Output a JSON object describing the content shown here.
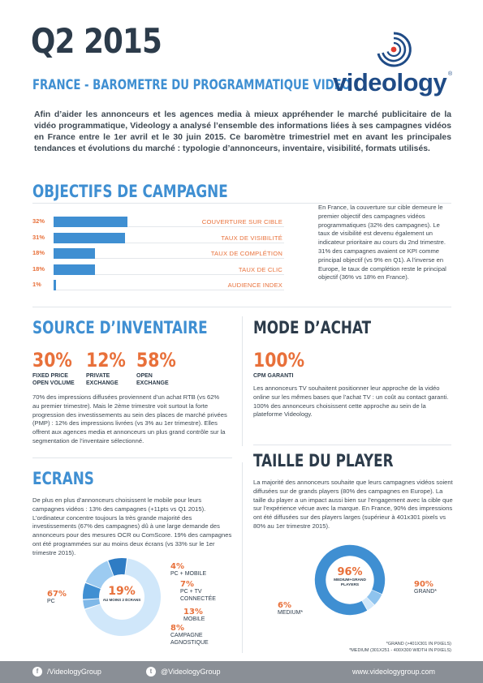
{
  "header": {
    "title": "Q2 2015",
    "subtitle": "FRANCE - BAROMETRE DU PROGRAMMATIQUE VIDEO",
    "logo_text": "videology",
    "logo_reg": "®"
  },
  "intro": "Afin d’aider les annonceurs et les agences media à mieux appréhender le marché publicitaire de la vidéo programmatique, Videology a analysé l’ensemble des informations liées à ses campagnes vidéos en France entre le 1er avril et le 30 juin 2015. Ce baromètre trimestriel met en avant les principales tendances et évolutions du marché : typologie d’annonceurs, inventaire, visibilité, formats utilisés.",
  "objectifs": {
    "title": "OBJECTIFS DE CAMPAGNE",
    "text": "En France, la couverture sur cible demeure le premier objectif des campagnes vidéos programmatiques (32% des campagnes). Le taux de visibilité est devenu également un indicateur prioritaire au cours du 2nd trimestre. 31% des campagnes avaient ce KPI comme principal objectif (vs 9% en Q1). A l’inverse en Europe, le taux de complétion reste le principal objectif (36% vs 18% en France).",
    "bar_color": "#3f8fd2",
    "accent_color": "#e8703a"
  },
  "chart_data": {
    "type": "bar",
    "orientation": "horizontal",
    "categories": [
      "COUVERTURE SUR CIBLE",
      "TAUX DE VISIBILITÉ",
      "TAUX DE COMPLÉTION",
      "TAUX DE CLIC",
      "AUDIENCE INDEX"
    ],
    "value_labels": [
      "32%",
      "31%",
      "18%",
      "18%",
      "1%"
    ],
    "values": [
      32,
      31,
      18,
      18,
      1
    ]
  },
  "source": {
    "title": "SOURCE D’INVENTAIRE",
    "stats": [
      {
        "value": "30%",
        "label1": "FIXED PRICE",
        "label2": "OPEN VOLUME"
      },
      {
        "value": "12%",
        "label1": "PRIVATE",
        "label2": "EXCHANGE"
      },
      {
        "value": "58%",
        "label1": "OPEN",
        "label2": "EXCHANGE"
      }
    ],
    "text": "70% des impressions diffusées proviennent d’un achat RTB (vs 62% au premier trimestre). Mais le 2ème trimestre voit surtout la forte progression des investissements au sein des places de marché privées (PMP) : 12% des impressions livrées (vs 3% au 1er trimestre). Elles offrent aux agences media et annonceurs un plus grand contrôle sur la segmentation de l’inventaire sélectionné."
  },
  "mode": {
    "title": "MODE D’ACHAT",
    "value": "100%",
    "label": "CPM GARANTI",
    "text": "Les annonceurs TV souhaitent positionner leur approche de la vidéo online sur les mêmes bases que l’achat TV : un coût au contact garanti. 100% des annonceurs choisissent cette approche au sein de la plateforme Videology."
  },
  "ecrans": {
    "title": "ECRANS",
    "text": "De plus en plus d’annonceurs choisissent le mobile pour leurs campagnes vidéos : 13% des campagnes (+11pts vs Q1 2015). L’ordinateur concentre toujours la très grande majorité des investissements (67% des campagnes) dû à une large demande des annonceurs pour des mesures OCR ou ComScore. 19% des campagnes ont été programmées sur au moins deux écrans (vs 33% sur le 1er trimestre 2015).",
    "center_value": "19%",
    "center_label": "AU MOINS 2 ÉCRANS",
    "segments": [
      {
        "value": 67,
        "pct": "67%",
        "label": "PC",
        "color": "#d0e7fa"
      },
      {
        "value": 4,
        "pct": "4%",
        "label": "PC + MOBILE",
        "color": "#7fb8e8"
      },
      {
        "value": 7,
        "pct": "7%",
        "label": "PC + TV CONNECTÉE",
        "color": "#3f8fd2"
      },
      {
        "value": 13,
        "pct": "13%",
        "label": "MOBILE",
        "color": "#9ccbf1"
      },
      {
        "value": 8,
        "pct": "8%",
        "label": "CAMPAGNE AGNOSTIQUE",
        "color": "#2f7cc4"
      }
    ]
  },
  "player": {
    "title": "TAILLE DU PLAYER",
    "text": "La majorité des annonceurs souhaite que leurs campagnes vidéos soient diffusées sur de grands players (80% des campagnes en Europe). La taille du player a un impact aussi bien sur l’engagement avec la cible que sur l’expérience vécue avec la marque. En France, 90% des impressions ont été diffusées sur des players larges (supérieur à 401x301 pixels vs 80% au 1er trimestre 2015).",
    "center_value": "96%",
    "center_label": "MEDIUM+GRAND PLAYERS",
    "segments": [
      {
        "value": 90,
        "pct": "90%",
        "label": "GRAND*",
        "color": "#3f8fd2"
      },
      {
        "value": 6,
        "pct": "6%",
        "label": "MEDIUM*",
        "color": "#8ec3ee"
      },
      {
        "value": 4,
        "pct": "",
        "label": "",
        "color": "#d0e7fa"
      }
    ],
    "note1": "*GRAND (>401X301 IN PIXELS)",
    "note2": "*MEDIUM (301X251 - 400X300 WIDTH IN PIXELS)"
  },
  "footer": {
    "facebook": "/VideologyGroup",
    "twitter": "@VideologyGroup",
    "website": "www.videologygroup.com",
    "facebook_icon": "f",
    "twitter_icon": "t"
  }
}
